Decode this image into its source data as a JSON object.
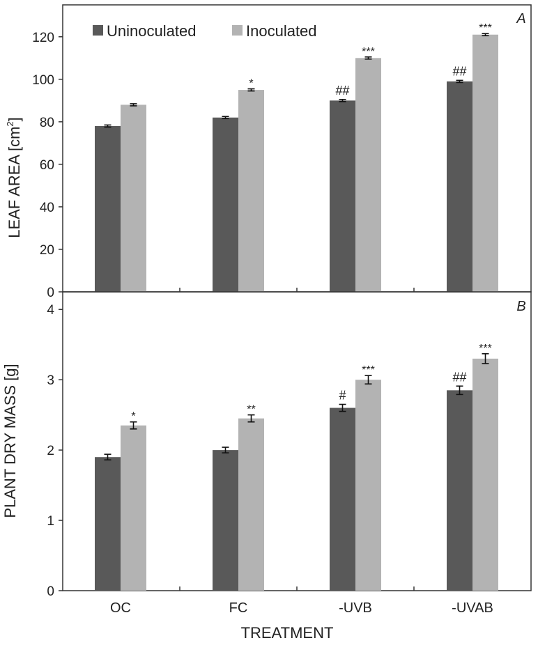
{
  "chart_data": [
    {
      "type": "bar",
      "panel_label": "A",
      "ylabel": "LEAF AREA",
      "ylabel_unit_pre": "[cm",
      "ylabel_unit_sup": "2",
      "ylabel_unit_post": "]",
      "ylim": [
        0,
        135
      ],
      "yticks": [
        "0",
        "20",
        "40",
        "60",
        "80",
        "100",
        "120"
      ],
      "categories": [
        "OC",
        "FC",
        "-UVB",
        "-UVAB"
      ],
      "legend_position": "top-left",
      "series": [
        {
          "name": "Uninoculated",
          "color": "#595959",
          "values": [
            78,
            82,
            90,
            99
          ],
          "errors": [
            0.5,
            0.5,
            0.5,
            0.5
          ],
          "annotations": [
            "",
            "",
            "##",
            "##"
          ]
        },
        {
          "name": "Inoculated",
          "color": "#b3b3b3",
          "values": [
            88,
            95,
            110,
            121
          ],
          "errors": [
            0.5,
            0.5,
            0.5,
            0.5
          ],
          "annotations": [
            "",
            "*",
            "***",
            "***"
          ]
        }
      ]
    },
    {
      "type": "bar",
      "panel_label": "B",
      "ylabel": "PLANT DRY MASS [g]",
      "ylim": [
        0,
        4.25
      ],
      "yticks": [
        "0",
        "1",
        "2",
        "3",
        "4"
      ],
      "categories": [
        "OC",
        "FC",
        "-UVB",
        "-UVAB"
      ],
      "xlabel": "TREATMENT",
      "series": [
        {
          "name": "Uninoculated",
          "color": "#595959",
          "values": [
            1.9,
            2.0,
            2.6,
            2.85
          ],
          "errors": [
            0.04,
            0.04,
            0.05,
            0.06
          ],
          "annotations": [
            "",
            "",
            "#",
            "##"
          ]
        },
        {
          "name": "Inoculated",
          "color": "#b3b3b3",
          "values": [
            2.35,
            2.45,
            3.0,
            3.3
          ],
          "errors": [
            0.05,
            0.05,
            0.06,
            0.07
          ],
          "annotations": [
            "*",
            "**",
            "***",
            "***"
          ]
        }
      ]
    }
  ]
}
